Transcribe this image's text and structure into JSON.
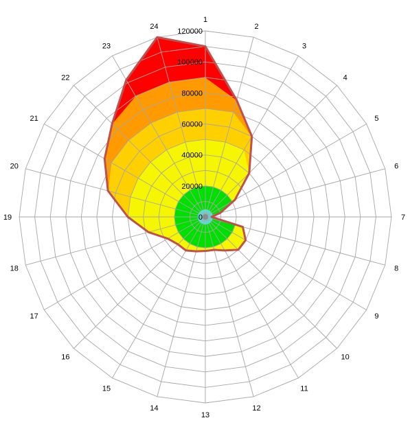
{
  "chart_data": {
    "type": "radar",
    "categories": [
      "1",
      "2",
      "3",
      "4",
      "5",
      "6",
      "7",
      "8",
      "9",
      "10",
      "11",
      "12",
      "13",
      "14",
      "15",
      "16",
      "17",
      "18",
      "19",
      "20",
      "21",
      "22",
      "23",
      "24"
    ],
    "values": [
      110000,
      78000,
      60000,
      40000,
      22000,
      10000,
      4000,
      25000,
      30000,
      30000,
      25000,
      22000,
      22000,
      23000,
      25000,
      25000,
      28000,
      38000,
      50000,
      65000,
      75000,
      85000,
      102000,
      120000
    ],
    "rlim": [
      0,
      120000
    ],
    "ring_ticks": [
      "0",
      "20000",
      "40000",
      "60000",
      "80000",
      "100000",
      "120000"
    ],
    "gridlines": 12,
    "outline_color": "#c0504d",
    "grid_color": "#a6a6a6",
    "band_colors": [
      "#40f0f0",
      "#00e000",
      "#f6f600",
      "#ffd000",
      "#ff9a00",
      "#ff0000"
    ],
    "band_edges": [
      0,
      5000,
      20000,
      50000,
      70000,
      90000,
      120000
    ]
  }
}
